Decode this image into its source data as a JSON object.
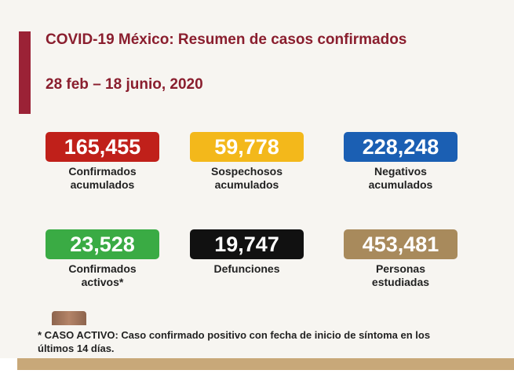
{
  "header": {
    "title": "COVID-19 México: Resumen de casos confirmados",
    "date_range": "28 feb – 18 junio, 2020"
  },
  "colors": {
    "accent": "#9b2236",
    "gold": "#c8a879",
    "red": "#c0201a",
    "yellow": "#f3b81b",
    "blue": "#1b5fb3",
    "green": "#3aab44",
    "black": "#111111",
    "brown": "#a88a5c"
  },
  "stats": [
    {
      "value": "165,455",
      "label1": "Confirmados",
      "label2": "acumulados",
      "color": "#c0201a"
    },
    {
      "value": "59,778",
      "label1": "Sospechosos",
      "label2": "acumulados",
      "color": "#f3b81b"
    },
    {
      "value": "228,248",
      "label1": "Negativos",
      "label2": "acumulados",
      "color": "#1b5fb3"
    },
    {
      "value": "23,528",
      "label1": "Confirmados",
      "label2": "activos*",
      "color": "#3aab44"
    },
    {
      "value": "19,747",
      "label1": "Defunciones",
      "label2": "",
      "color": "#111111"
    },
    {
      "value": "453,481",
      "label1": "Personas",
      "label2": "estudiadas",
      "color": "#a88a5c"
    }
  ],
  "footnote": "* CASO ACTIVO: Caso confirmado positivo con fecha de inicio de síntoma en los últimos 14 días."
}
